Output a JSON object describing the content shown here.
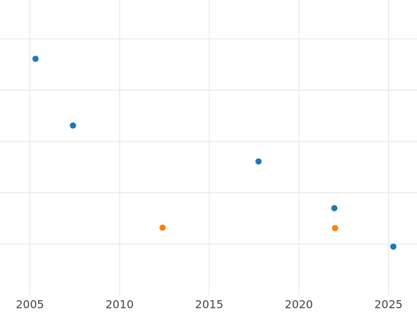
{
  "chart_data": {
    "type": "scatter",
    "series": [
      {
        "color": "#1f77b4",
        "x": [
          2005.31,
          2007.4,
          2017.75,
          2021.98,
          2025.27
        ],
        "values": [
          4.61,
          3.31,
          2.61,
          1.7,
          0.95
        ]
      },
      {
        "color": "#ff7f0e",
        "x": [
          2012.4,
          2022.02
        ],
        "values": [
          1.32,
          1.31
        ]
      }
    ],
    "xlim": [
      2003.33,
      2026.59
    ],
    "xticks": [
      2005,
      2010,
      2015,
      2020,
      2025
    ],
    "ylim": [
      0,
      5.75
    ],
    "yticks": [
      1,
      2,
      3,
      4,
      5
    ],
    "ytick_labels": false,
    "grid": true
  }
}
